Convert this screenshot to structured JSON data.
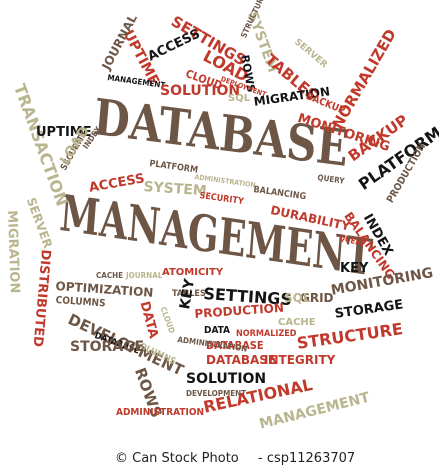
{
  "words": [
    {
      "text": "DATABASE",
      "cls": "b s"
    },
    {
      "text": "MANAGEMENT",
      "cls": "b s"
    },
    {
      "text": "SETTINGS",
      "cls": "r"
    },
    {
      "text": "SYSTEM",
      "cls": "t"
    },
    {
      "text": "UPTIME",
      "cls": "r"
    },
    {
      "text": "ACCESS",
      "cls": "k"
    },
    {
      "text": "LOAD",
      "cls": "r"
    },
    {
      "text": "STRUCTURE",
      "cls": "b"
    },
    {
      "text": "SERVER",
      "cls": "t"
    },
    {
      "text": "TABLES",
      "cls": "r"
    },
    {
      "text": "ROWS",
      "cls": "k"
    },
    {
      "text": "CLOUD",
      "cls": "r"
    },
    {
      "text": "DEPLOYMENT",
      "cls": "r"
    },
    {
      "text": "JOURNAL",
      "cls": "b"
    },
    {
      "text": "MANAGEMENT",
      "cls": "k"
    },
    {
      "text": "SOLUTION",
      "cls": "r"
    },
    {
      "text": "SQL",
      "cls": "t"
    },
    {
      "text": "MIGRATION",
      "cls": "k"
    },
    {
      "text": "BACKUP",
      "cls": "r"
    },
    {
      "text": "MONITORING",
      "cls": "r"
    },
    {
      "text": "TRANSACTION",
      "cls": "t"
    },
    {
      "text": "UPTIME",
      "cls": "k"
    },
    {
      "text": "INDEX",
      "cls": "b"
    },
    {
      "text": "SECURITY",
      "cls": "b"
    },
    {
      "text": "NORMALIZED",
      "cls": "r"
    },
    {
      "text": "BACKUP",
      "cls": "r"
    },
    {
      "text": "PLATFORM",
      "cls": "k"
    },
    {
      "text": "LOAD",
      "cls": "b"
    },
    {
      "text": "PLATFORM",
      "cls": "b"
    },
    {
      "text": "ACCESS",
      "cls": "r"
    },
    {
      "text": "SYSTEM",
      "cls": "t"
    },
    {
      "text": "ADMINISTRATION",
      "cls": "t"
    },
    {
      "text": "QUERY",
      "cls": "b"
    },
    {
      "text": "BALANCING",
      "cls": "b"
    },
    {
      "text": "SECURITY",
      "cls": "r"
    },
    {
      "text": "DURABILITY",
      "cls": "r"
    },
    {
      "text": "SERVER",
      "cls": "t"
    },
    {
      "text": "MIGRATION",
      "cls": "t"
    },
    {
      "text": "DISTRIBUTED",
      "cls": "r"
    },
    {
      "text": "INDEX",
      "cls": "k"
    },
    {
      "text": "PRODUCTION",
      "cls": "b"
    },
    {
      "text": "BALANCING",
      "cls": "r"
    },
    {
      "text": "QUERY",
      "cls": "r"
    },
    {
      "text": "KEY",
      "cls": "k"
    },
    {
      "text": "CACHE",
      "cls": "b"
    },
    {
      "text": "JOURNAL",
      "cls": "t"
    },
    {
      "text": "ATOMICITY",
      "cls": "r"
    },
    {
      "text": "OPTIMIZATION",
      "cls": "b"
    },
    {
      "text": "COLUMNS",
      "cls": "b"
    },
    {
      "text": "TABLES",
      "cls": "b"
    },
    {
      "text": "SETTINGS",
      "cls": "k"
    },
    {
      "text": "GRID",
      "cls": "b"
    },
    {
      "text": "SQL",
      "cls": "t"
    },
    {
      "text": "MONITORING",
      "cls": "b"
    },
    {
      "text": "DATA",
      "cls": "r"
    },
    {
      "text": "DEVELOPMENT",
      "cls": "b"
    },
    {
      "text": "CLOUD",
      "cls": "t"
    },
    {
      "text": "KEY",
      "cls": "k"
    },
    {
      "text": "PRODUCTION",
      "cls": "r"
    },
    {
      "text": "CACHE",
      "cls": "t"
    },
    {
      "text": "STORAGE",
      "cls": "k"
    },
    {
      "text": "DATABASE",
      "cls": "k"
    },
    {
      "text": "DATA",
      "cls": "k"
    },
    {
      "text": "NORMALIZED",
      "cls": "r"
    },
    {
      "text": "COLUMNS",
      "cls": "t"
    },
    {
      "text": "DATABASE",
      "cls": "r"
    },
    {
      "text": "ADMINISTRATION",
      "cls": "b"
    },
    {
      "text": "STRUCTURE",
      "cls": "r"
    },
    {
      "text": "STORAGE",
      "cls": "b"
    },
    {
      "text": "DATABASE",
      "cls": "r"
    },
    {
      "text": "INTEGRITY",
      "cls": "r"
    },
    {
      "text": "ROWS",
      "cls": "b"
    },
    {
      "text": "SOLUTION",
      "cls": "k"
    },
    {
      "text": "DEVELOPMENT",
      "cls": "b"
    },
    {
      "text": "ADMINISTRATION",
      "cls": "r"
    },
    {
      "text": "RELATIONAL",
      "cls": "r"
    },
    {
      "text": "MANAGEMENT",
      "cls": "t"
    }
  ],
  "footer": {
    "left": "© Can Stock Photo",
    "right": "- csp11263707"
  },
  "colors": {
    "red": "#c0392b",
    "brown": "#6d5646",
    "black": "#141414",
    "tan": "#b9b58e"
  }
}
